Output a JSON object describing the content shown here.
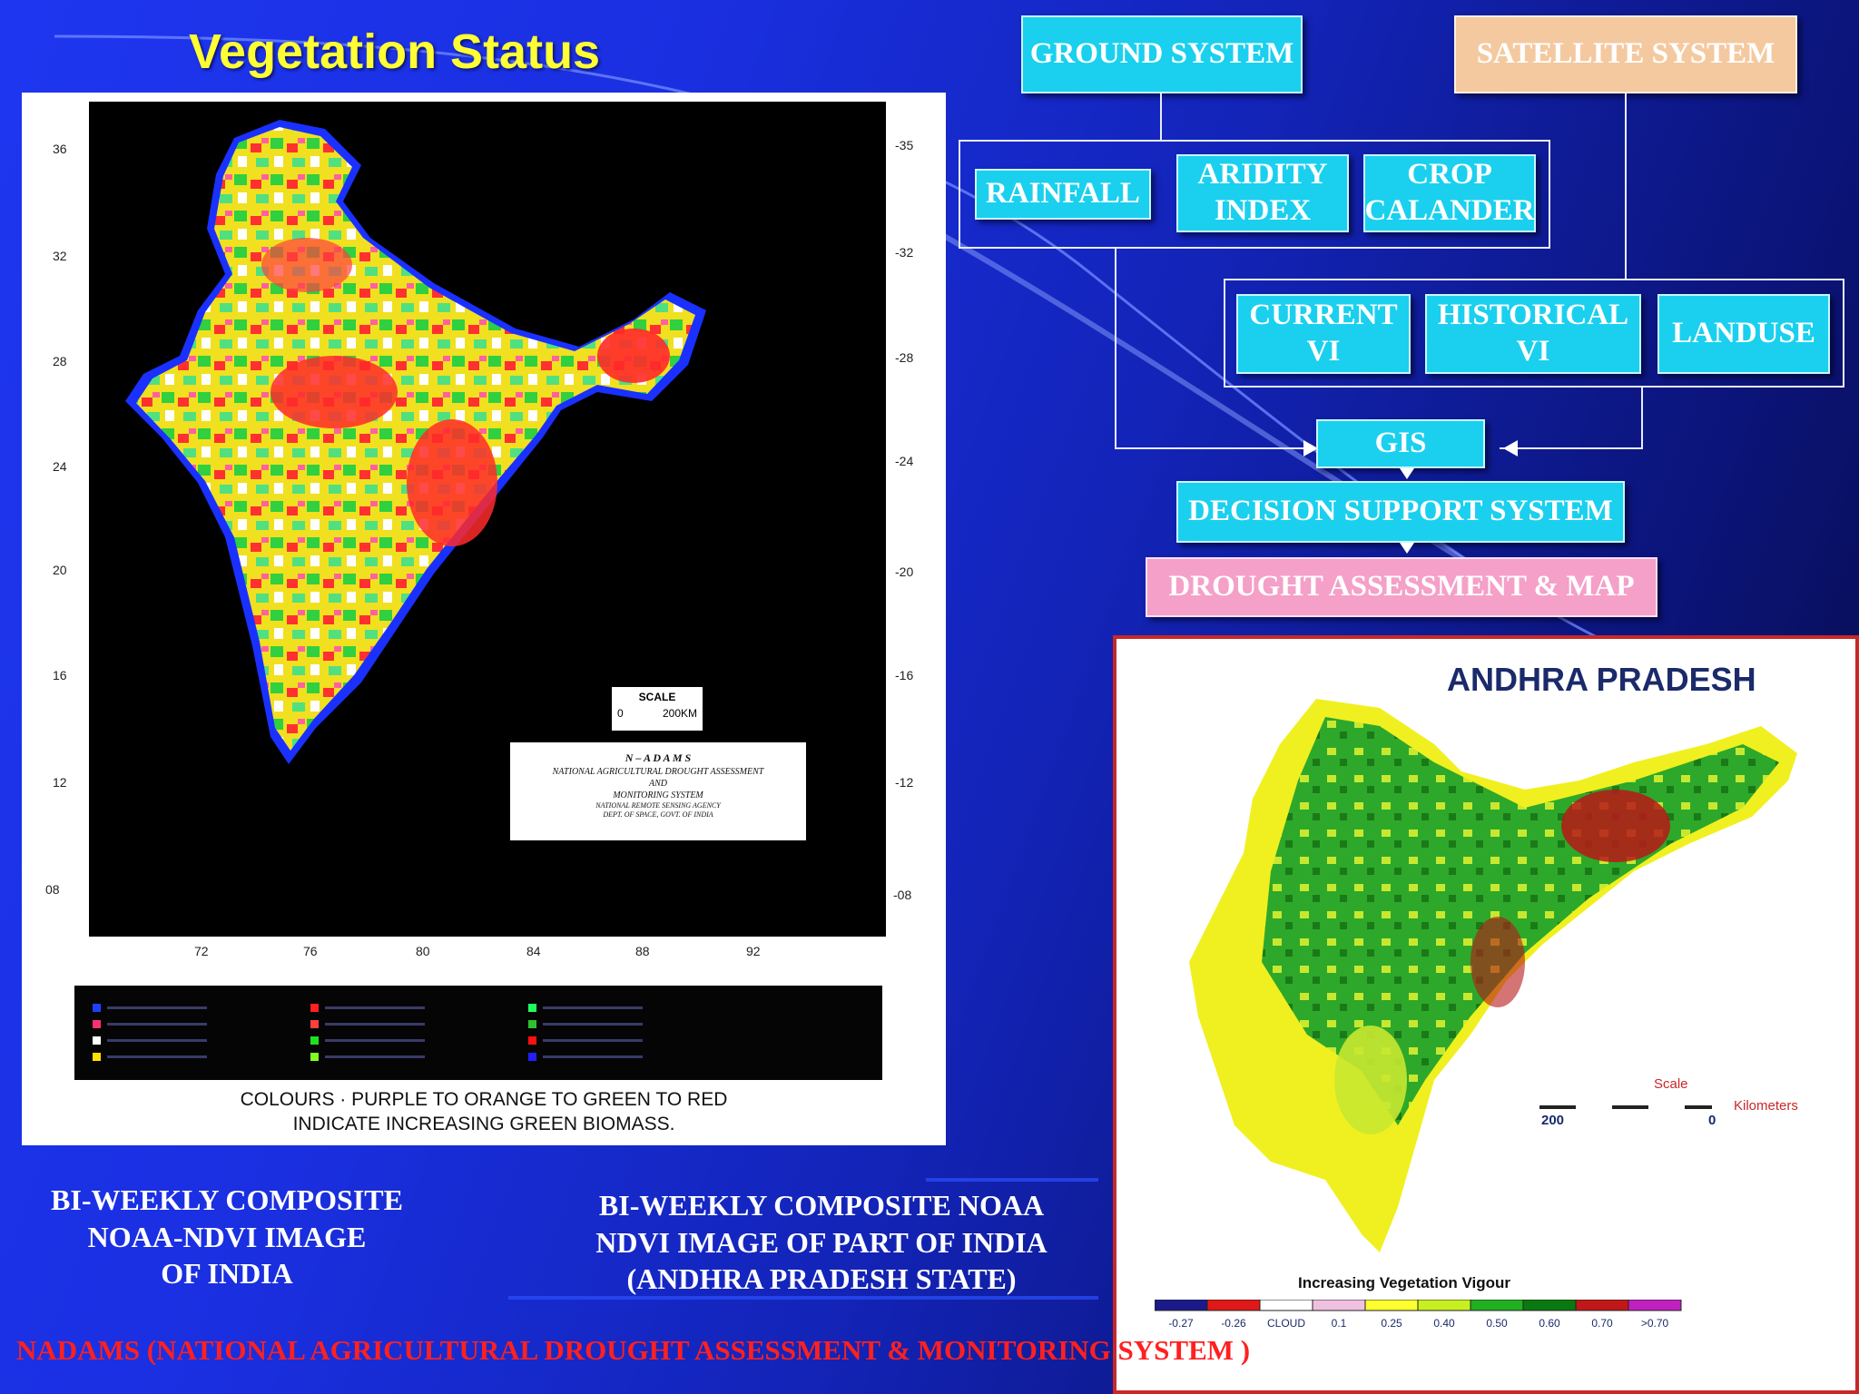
{
  "slide": {
    "title": "Vegetation Status",
    "footer": "NADAMS (NATIONAL AGRICULTURAL DROUGHT ASSESSMENT & MONITORING SYSTEM )"
  },
  "flowchart": {
    "ground_system": "GROUND SYSTEM",
    "satellite_system": "SATELLITE SYSTEM",
    "rainfall": "RAINFALL",
    "aridity_index_line1": "ARIDITY",
    "aridity_index_line2": "INDEX",
    "crop_calendar_line1": "CROP",
    "crop_calendar_line2": "CALANDER",
    "current_vi_line1": "CURRENT",
    "current_vi_line2": "VI",
    "historical_vi_line1": "HISTORICAL",
    "historical_vi_line2": "VI",
    "landuse": "LANDUSE",
    "gis": "GIS",
    "dss": "DECISION SUPPORT SYSTEM",
    "drought_map": "DROUGHT ASSESSMENT & MAP"
  },
  "india_map": {
    "lat_left": [
      "36",
      "32",
      "28",
      "24",
      "20",
      "16",
      "12",
      "08"
    ],
    "lat_right": [
      "-35",
      "-32",
      "-28",
      "-24",
      "-20",
      "-16",
      "-12",
      "-08"
    ],
    "lon_bottom": [
      "72",
      "76",
      "80",
      "84",
      "88",
      "92"
    ],
    "scale_label": "SCALE",
    "scale_value_start": "0",
    "scale_value_end": "200KM",
    "info_line1": "N – A D A M S",
    "info_line2": "NATIONAL AGRICULTURAL DROUGHT ASSESSMENT",
    "info_line3": "AND",
    "info_line4": "MONITORING SYSTEM",
    "info_line5": "NATIONAL REMOTE SENSING AGENCY",
    "info_line6": "DEPT. OF SPACE, GOVT. OF INDIA",
    "caption_line1": "COLOURS · PURPLE TO ORANGE TO GREEN TO RED",
    "caption_line2": "INDICATE INCREASING GREEN BIOMASS.",
    "legend_colors": [
      "#2040ff",
      "#ff3070",
      "#ffffff",
      "#ffe000",
      "#ff2020",
      "#ff4040",
      "#20e020",
      "#80ff20",
      "#20ff60",
      "#30c030",
      "#ff1010",
      "#2020ff"
    ]
  },
  "ap_map": {
    "title": "ANDHRA PRADESH",
    "scale_label": "Scale",
    "scale_start": "200",
    "scale_end": "0",
    "scale_unit": "Kilometers",
    "legend_title": "Increasing Vegetation Vigour",
    "legend_labels": [
      "-0.27",
      "-0.26",
      "CLOUD",
      "0.1",
      "0.25",
      "0.40",
      "0.50",
      "0.60",
      "0.70",
      ">0.70"
    ],
    "legend_colors": [
      "#1a1a8a",
      "#e01818",
      "#ffffff",
      "#f0c0e0",
      "#ffff30",
      "#c8f020",
      "#20b020",
      "#0a7a10",
      "#c01818",
      "#c020c0"
    ]
  },
  "captions": {
    "india_line1": "BI-WEEKLY COMPOSITE",
    "india_line2": "NOAA-NDVI IMAGE",
    "india_line3": "OF INDIA",
    "ap_line1": "BI-WEEKLY COMPOSITE NOAA",
    "ap_line2": "NDVI IMAGE OF PART OF INDIA",
    "ap_line3": "(ANDHRA PRADESH STATE)"
  }
}
